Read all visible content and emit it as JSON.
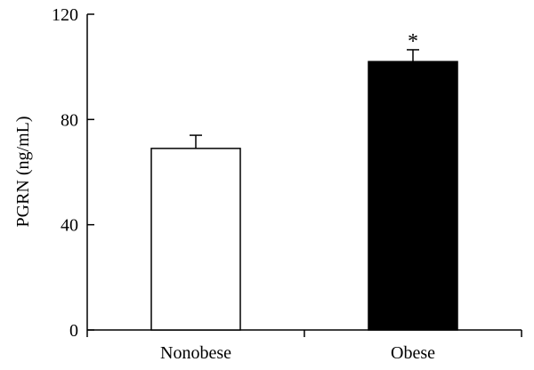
{
  "chart_data": {
    "type": "bar",
    "title": "",
    "xlabel": "",
    "ylabel": "PGRN (ng/mL)",
    "categories": [
      "Nonobese",
      "Obese"
    ],
    "values": [
      69,
      102
    ],
    "error": [
      5,
      4.5
    ],
    "bar_colors": [
      "#ffffff",
      "#000000"
    ],
    "significance": [
      "",
      "*"
    ],
    "ylim": [
      0,
      120
    ],
    "yticks": [
      "0",
      "40",
      "80",
      "120"
    ],
    "grid": false,
    "legend": "none"
  }
}
